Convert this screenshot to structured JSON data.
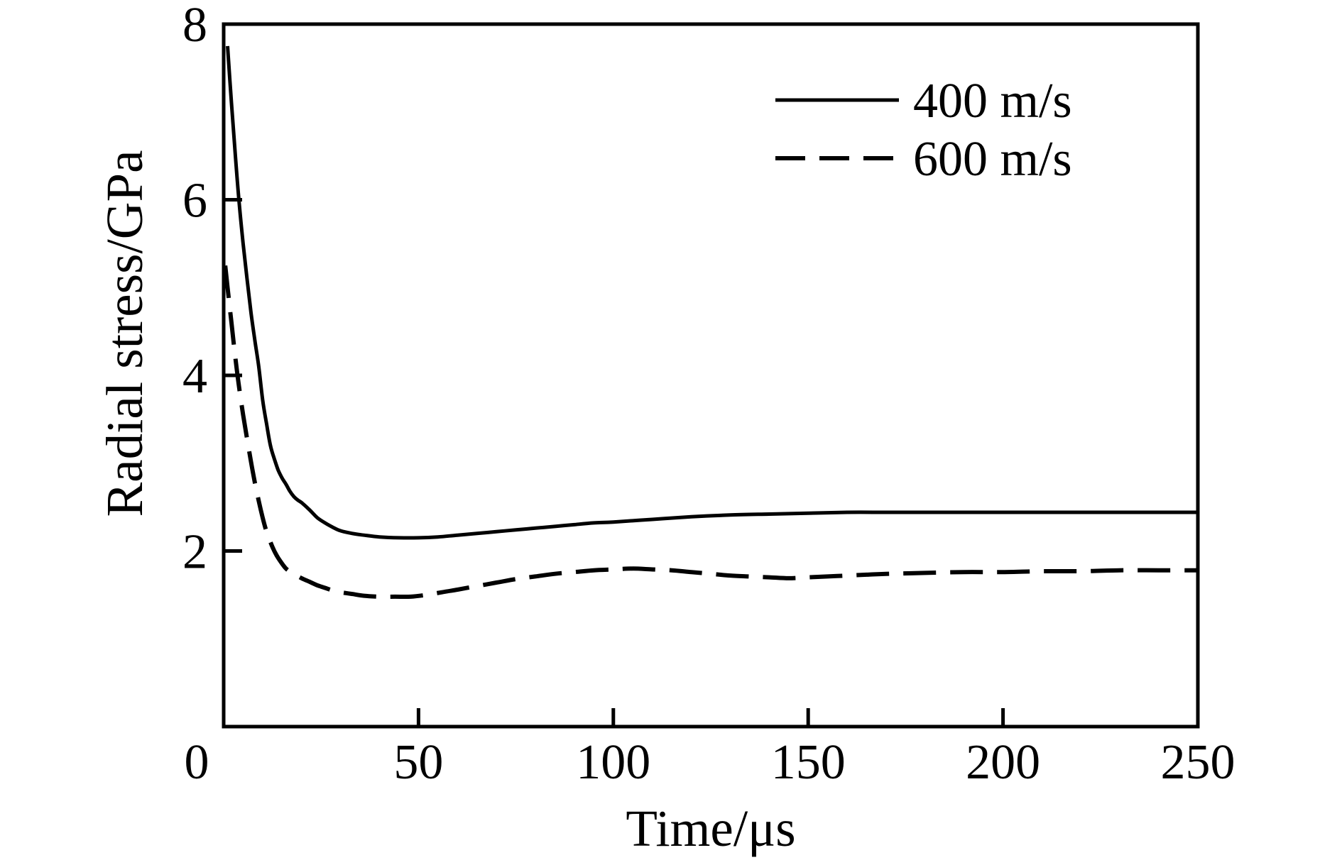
{
  "chart_data": {
    "type": "line",
    "title": "",
    "xlabel": "Time/μs",
    "ylabel": "Radial stress/GPa",
    "xlim": [
      0,
      250
    ],
    "ylim": [
      0,
      8
    ],
    "xticks": [
      0,
      50,
      100,
      150,
      200,
      250
    ],
    "yticks": [
      0,
      2,
      4,
      6,
      8
    ],
    "xtick_labels": [
      "0",
      "50",
      "100",
      "150",
      "200",
      "250"
    ],
    "ytick_labels": [
      "0",
      "2",
      "4",
      "6",
      "8"
    ],
    "origin_label": "0",
    "grid": false,
    "legend_position": "top-right",
    "line_color": "#000000",
    "series": [
      {
        "name": "400 m/s",
        "style": "solid",
        "x": [
          1,
          2,
          3,
          4,
          5,
          6,
          7,
          8,
          9,
          10,
          11,
          12,
          13,
          14,
          15,
          16,
          17,
          18,
          19,
          20,
          22,
          24,
          26,
          28,
          30,
          33,
          36,
          40,
          45,
          50,
          55,
          60,
          65,
          70,
          75,
          80,
          85,
          90,
          95,
          100,
          110,
          120,
          130,
          140,
          150,
          160,
          170,
          180,
          190,
          200,
          210,
          220,
          230,
          240,
          250
        ],
        "y": [
          7.75,
          7.1,
          6.5,
          5.95,
          5.5,
          5.1,
          4.72,
          4.4,
          4.1,
          3.72,
          3.45,
          3.2,
          3.05,
          2.92,
          2.83,
          2.76,
          2.68,
          2.62,
          2.58,
          2.55,
          2.47,
          2.38,
          2.32,
          2.27,
          2.23,
          2.2,
          2.18,
          2.16,
          2.15,
          2.15,
          2.16,
          2.18,
          2.2,
          2.22,
          2.24,
          2.26,
          2.28,
          2.3,
          2.32,
          2.33,
          2.36,
          2.39,
          2.41,
          2.42,
          2.43,
          2.44,
          2.44,
          2.44,
          2.44,
          2.44,
          2.44,
          2.44,
          2.44,
          2.44,
          2.44
        ]
      },
      {
        "name": "600 m/s",
        "style": "dashed",
        "x": [
          0.4,
          1,
          2,
          3,
          4,
          5,
          6,
          7,
          8,
          9,
          10,
          11,
          12,
          13,
          14,
          16,
          18,
          20,
          22,
          24,
          26,
          28,
          30,
          33,
          36,
          40,
          44,
          48,
          52,
          56,
          60,
          65,
          70,
          75,
          80,
          85,
          90,
          95,
          100,
          105,
          110,
          115,
          120,
          125,
          130,
          135,
          140,
          145,
          150,
          155,
          160,
          165,
          170,
          180,
          190,
          200,
          210,
          220,
          230,
          240,
          250
        ],
        "y": [
          5.25,
          5.0,
          4.6,
          4.2,
          3.85,
          3.55,
          3.28,
          3.02,
          2.78,
          2.57,
          2.38,
          2.22,
          2.1,
          2.0,
          1.92,
          1.8,
          1.74,
          1.69,
          1.65,
          1.61,
          1.58,
          1.55,
          1.53,
          1.51,
          1.49,
          1.48,
          1.48,
          1.48,
          1.5,
          1.53,
          1.56,
          1.6,
          1.64,
          1.68,
          1.71,
          1.74,
          1.76,
          1.78,
          1.79,
          1.8,
          1.79,
          1.78,
          1.76,
          1.74,
          1.72,
          1.71,
          1.7,
          1.69,
          1.7,
          1.71,
          1.72,
          1.73,
          1.74,
          1.75,
          1.76,
          1.76,
          1.77,
          1.77,
          1.78,
          1.78,
          1.78
        ]
      }
    ]
  }
}
